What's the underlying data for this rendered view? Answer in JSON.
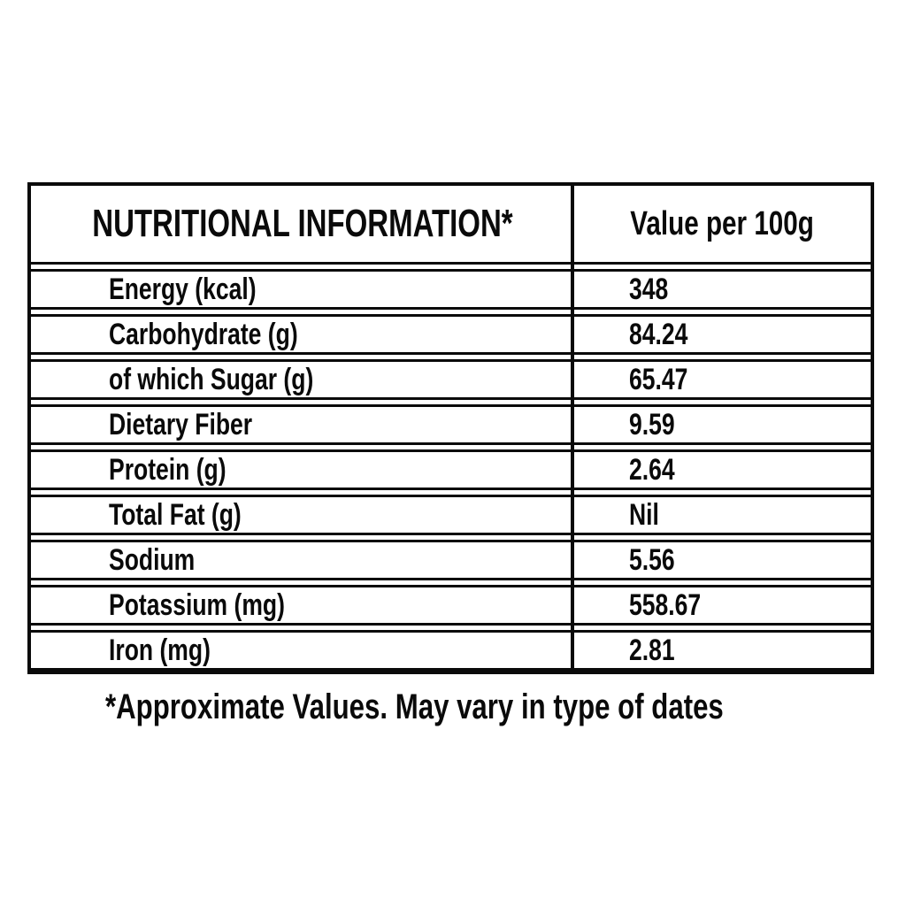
{
  "table": {
    "header": {
      "label": "NUTRITIONAL INFORMATION*",
      "value": "Value per 100g"
    },
    "rows": [
      {
        "label": "Energy (kcal)",
        "value": "348"
      },
      {
        "label": "Carbohydrate (g)",
        "value": "84.24"
      },
      {
        "label": "of which Sugar (g)",
        "value": "65.47"
      },
      {
        "label": "Dietary Fiber",
        "value": "9.59"
      },
      {
        "label": "Protein (g)",
        "value": "2.64"
      },
      {
        "label": "Total Fat (g)",
        "value": "Nil"
      },
      {
        "label": "Sodium",
        "value": "5.56"
      },
      {
        "label": "Potassium (mg)",
        "value": "558.67"
      },
      {
        "label": "Iron (mg)",
        "value": "2.81"
      }
    ],
    "footnote": "*Approximate Values. May vary in type of dates"
  },
  "colors": {
    "text": "#0a0a0a",
    "border": "#0a0a0a",
    "background": "#ffffff"
  }
}
